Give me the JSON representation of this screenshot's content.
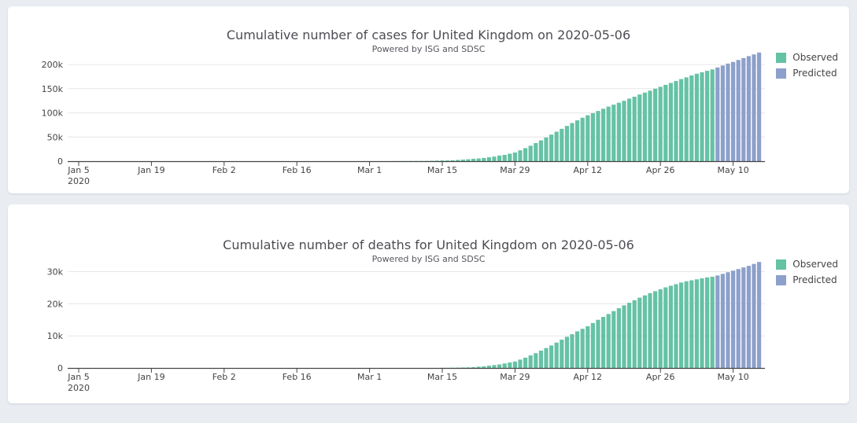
{
  "page": {
    "background_color": "#e9edf2",
    "card_background_color": "#ffffff"
  },
  "chart_data": [
    {
      "type": "bar",
      "title": "Cumulative number of cases for United Kingdom on 2020-05-06",
      "subtitle": "Powered by ISG and SDSC",
      "legend_position": "top-right",
      "grid": true,
      "x_start_date": "2020-01-05",
      "x_end_date": "2020-05-15",
      "x_tick_labels": [
        "Jan 5",
        "Jan 19",
        "Feb 2",
        "Feb 16",
        "Mar 1",
        "Mar 15",
        "Mar 29",
        "Apr 12",
        "Apr 26",
        "May 10"
      ],
      "x_first_tick_sub": "2020",
      "x_tick_indices": [
        0,
        14,
        28,
        42,
        56,
        70,
        84,
        98,
        112,
        126
      ],
      "ylim": [
        0,
        236000
      ],
      "y_ticks": [
        0,
        50000,
        100000,
        150000,
        200000
      ],
      "y_tick_labels": [
        "0",
        "50k",
        "100k",
        "150k",
        "200k"
      ],
      "series": [
        {
          "name": "Observed",
          "color": "#66c2a5",
          "start_date": "2020-01-05",
          "end_date": "2020-05-06",
          "values": [
            0,
            0,
            0,
            0,
            0,
            0,
            0,
            0,
            0,
            0,
            0,
            0,
            0,
            0,
            0,
            0,
            0,
            0,
            0,
            0,
            0,
            0,
            0,
            0,
            0,
            0,
            2,
            2,
            2,
            2,
            3,
            3,
            3,
            4,
            8,
            8,
            9,
            9,
            9,
            9,
            9,
            9,
            9,
            9,
            13,
            13,
            13,
            13,
            15,
            20,
            23,
            23,
            23,
            23,
            23,
            23,
            36,
            40,
            51,
            85,
            115,
            164,
            206,
            273,
            321,
            382,
            460,
            590,
            800,
            1140,
            1400,
            1550,
            1950,
            2630,
            3270,
            3980,
            5020,
            5700,
            6650,
            8080,
            9530,
            11660,
            13000,
            15500,
            18000,
            22500,
            27000,
            32000,
            37500,
            43000,
            49000,
            55000,
            61000,
            67000,
            73000,
            79000,
            84500,
            90000,
            95000,
            99500,
            104000,
            108500,
            113000,
            117000,
            121000,
            125000,
            129500,
            133500,
            138000,
            142000,
            146000,
            150000,
            154000,
            158000,
            162000,
            166000,
            170000,
            173500,
            177500,
            181000,
            184000,
            187000,
            190000
          ]
        },
        {
          "name": "Predicted",
          "color": "#8da0cb",
          "start_date": "2020-05-07",
          "end_date": "2020-05-15",
          "values": [
            194000,
            198000,
            202000,
            205500,
            209500,
            213500,
            217500,
            221000,
            225000
          ]
        }
      ]
    },
    {
      "type": "bar",
      "title": "Cumulative number of deaths for United Kingdom on 2020-05-06",
      "subtitle": "Powered by ISG and SDSC",
      "legend_position": "top-right",
      "grid": true,
      "x_start_date": "2020-01-05",
      "x_end_date": "2020-05-15",
      "x_tick_labels": [
        "Jan 5",
        "Jan 19",
        "Feb 2",
        "Feb 16",
        "Mar 1",
        "Mar 15",
        "Mar 29",
        "Apr 12",
        "Apr 26",
        "May 10"
      ],
      "x_first_tick_sub": "2020",
      "x_tick_indices": [
        0,
        14,
        28,
        42,
        56,
        70,
        84,
        98,
        112,
        126
      ],
      "ylim": [
        0,
        35500
      ],
      "y_ticks": [
        0,
        10000,
        20000,
        30000
      ],
      "y_tick_labels": [
        "0",
        "10k",
        "20k",
        "30k"
      ],
      "series": [
        {
          "name": "Observed",
          "color": "#66c2a5",
          "start_date": "2020-01-05",
          "end_date": "2020-05-06",
          "values": [
            0,
            0,
            0,
            0,
            0,
            0,
            0,
            0,
            0,
            0,
            0,
            0,
            0,
            0,
            0,
            0,
            0,
            0,
            0,
            0,
            0,
            0,
            0,
            0,
            0,
            0,
            0,
            0,
            0,
            0,
            0,
            0,
            0,
            0,
            0,
            0,
            0,
            0,
            0,
            0,
            0,
            0,
            0,
            0,
            0,
            0,
            0,
            0,
            0,
            0,
            0,
            0,
            0,
            0,
            0,
            0,
            0,
            0,
            0,
            1,
            1,
            2,
            2,
            3,
            5,
            7,
            8,
            10,
            15,
            21,
            35,
            55,
            72,
            104,
            144,
            180,
            250,
            400,
            500,
            700,
            900,
            1100,
            1400,
            1700,
            2000,
            2600,
            3200,
            3900,
            4600,
            5400,
            6200,
            7000,
            7900,
            8800,
            9700,
            10500,
            11400,
            12200,
            13000,
            14000,
            15000,
            15900,
            16800,
            17700,
            18600,
            19500,
            20300,
            21100,
            21900,
            22600,
            23300,
            23900,
            24500,
            25100,
            25600,
            26100,
            26600,
            27000,
            27300,
            27600,
            27900,
            28200,
            28400
          ]
        },
        {
          "name": "Predicted",
          "color": "#8da0cb",
          "start_date": "2020-05-07",
          "end_date": "2020-05-15",
          "values": [
            28800,
            29300,
            29800,
            30300,
            30800,
            31300,
            31800,
            32400,
            33000
          ]
        }
      ]
    }
  ]
}
